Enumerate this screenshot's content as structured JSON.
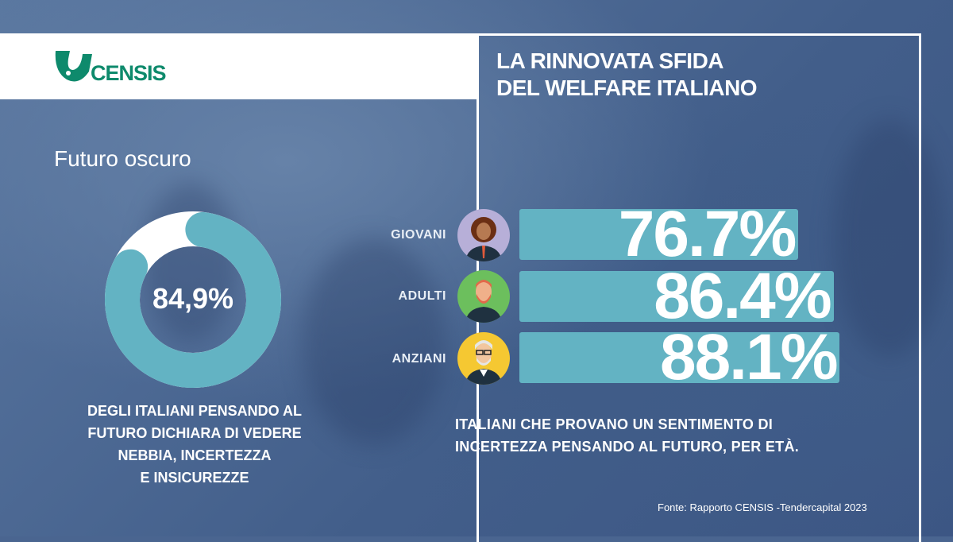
{
  "logo": {
    "text": "CENSIS",
    "color": "#0e8a6c"
  },
  "header": {
    "title_line1": "LA RINNOVATA SFIDA",
    "title_line2": "DEL WELFARE ITALIANO"
  },
  "subtitle": "Futuro oscuro",
  "chart_data": [
    {
      "type": "pie",
      "variant": "donut",
      "values": [
        84.9,
        15.1
      ],
      "colors": [
        "#63b3c3",
        "#ffffff"
      ],
      "label": "84,9%",
      "caption_lines": [
        "DEGLI ITALIANI PENSANDO AL",
        "FUTURO DICHIARA DI VEDERE",
        "NEBBIA, INCERTEZZA",
        "E INSICUREZZE"
      ]
    },
    {
      "type": "bar",
      "orientation": "horizontal",
      "categories": [
        "GIOVANI",
        "ADULTI",
        "ANZIANI"
      ],
      "values": [
        76.7,
        86.4,
        88.1
      ],
      "data_labels": [
        "76.7%",
        "86.4%",
        "88.1%"
      ],
      "icons": [
        "young-person-avatar",
        "adult-man-avatar",
        "elderly-man-avatar"
      ],
      "bar_color": "#63b3c3",
      "caption_lines": [
        "ITALIANI CHE PROVANO UN SENTIMENTO DI",
        "INCERTEZZA PENSANDO AL FUTURO, PER ETÀ."
      ]
    }
  ],
  "source": "Fonte: Rapporto CENSIS -Tendercapital 2023"
}
